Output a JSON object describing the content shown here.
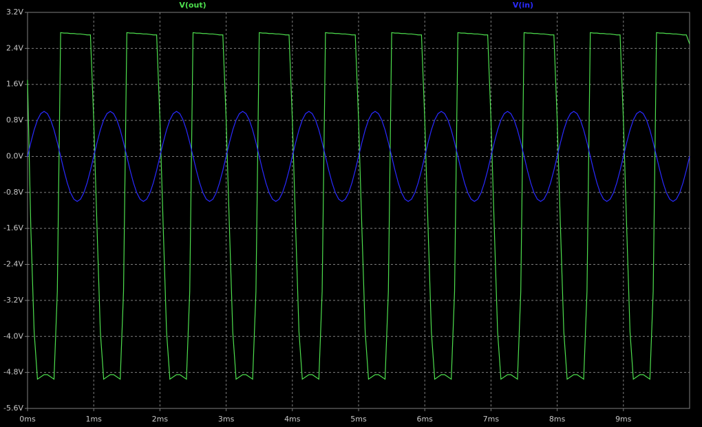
{
  "chart_data": {
    "type": "line",
    "x": [
      0,
      0.05,
      0.1,
      0.15,
      0.2,
      0.25,
      0.3,
      0.35,
      0.4,
      0.45,
      0.5,
      0.55,
      0.6,
      0.65,
      0.7,
      0.75,
      0.8,
      0.85,
      0.9,
      0.95,
      1,
      1.05,
      1.1,
      1.15,
      1.2,
      1.25,
      1.3,
      1.35,
      1.4,
      1.45,
      1.5,
      1.55,
      1.6,
      1.65,
      1.7,
      1.75,
      1.8,
      1.85,
      1.9,
      1.95,
      2,
      2.05,
      2.1,
      2.15,
      2.2,
      2.25,
      2.3,
      2.35,
      2.4,
      2.45,
      2.5,
      2.55,
      2.6,
      2.65,
      2.7,
      2.75,
      2.8,
      2.85,
      2.9,
      2.95,
      3,
      3.05,
      3.1,
      3.15,
      3.2,
      3.25,
      3.3,
      3.35,
      3.4,
      3.45,
      3.5,
      3.55,
      3.6,
      3.65,
      3.7,
      3.75,
      3.8,
      3.85,
      3.9,
      3.95,
      4,
      4.05,
      4.1,
      4.15,
      4.2,
      4.25,
      4.3,
      4.35,
      4.4,
      4.45,
      4.5,
      4.55,
      4.6,
      4.65,
      4.7,
      4.75,
      4.8,
      4.85,
      4.9,
      4.95,
      5,
      5.05,
      5.1,
      5.15,
      5.2,
      5.25,
      5.3,
      5.35,
      5.4,
      5.45,
      5.5,
      5.55,
      5.6,
      5.65,
      5.7,
      5.75,
      5.8,
      5.85,
      5.9,
      5.95,
      6,
      6.05,
      6.1,
      6.15,
      6.2,
      6.25,
      6.3,
      6.35,
      6.4,
      6.45,
      6.5,
      6.55,
      6.6,
      6.65,
      6.7,
      6.75,
      6.8,
      6.85,
      6.9,
      6.95,
      7,
      7.05,
      7.1,
      7.15,
      7.2,
      7.25,
      7.3,
      7.35,
      7.4,
      7.45,
      7.5,
      7.55,
      7.6,
      7.65,
      7.7,
      7.75,
      7.8,
      7.85,
      7.9,
      7.95,
      8,
      8.05,
      8.1,
      8.15,
      8.2,
      8.25,
      8.3,
      8.35,
      8.4,
      8.45,
      8.5,
      8.55,
      8.6,
      8.65,
      8.7,
      8.75,
      8.8,
      8.85,
      8.9,
      8.95,
      9,
      9.05,
      9.1,
      9.15,
      9.2,
      9.25,
      9.3,
      9.35,
      9.4,
      9.45,
      9.5,
      9.55,
      9.6,
      9.65,
      9.7,
      9.75,
      9.8,
      9.85,
      9.9,
      9.95,
      10
    ],
    "series": [
      {
        "name": "V(out)",
        "color": "#4ee04e",
        "values": [
          1.7,
          -1.6,
          -3.9,
          -4.95,
          -4.9,
          -4.85,
          -4.85,
          -4.9,
          -4.95,
          -3,
          2.75,
          2.74,
          2.74,
          2.73,
          2.73,
          2.72,
          2.72,
          2.71,
          2.7,
          2.7,
          0.8,
          -1.6,
          -3.9,
          -4.95,
          -4.9,
          -4.85,
          -4.85,
          -4.9,
          -4.95,
          -3,
          2.75,
          2.74,
          2.74,
          2.73,
          2.73,
          2.72,
          2.72,
          2.71,
          2.7,
          2.7,
          0.8,
          -1.6,
          -3.9,
          -4.95,
          -4.9,
          -4.85,
          -4.85,
          -4.9,
          -4.95,
          -3,
          2.75,
          2.74,
          2.74,
          2.73,
          2.73,
          2.72,
          2.72,
          2.71,
          2.7,
          2.7,
          0.8,
          -1.6,
          -3.9,
          -4.95,
          -4.9,
          -4.85,
          -4.85,
          -4.9,
          -4.95,
          -3,
          2.75,
          2.74,
          2.74,
          2.73,
          2.73,
          2.72,
          2.72,
          2.71,
          2.7,
          2.7,
          0.8,
          -1.6,
          -3.9,
          -4.95,
          -4.9,
          -4.85,
          -4.85,
          -4.9,
          -4.95,
          -3,
          2.75,
          2.74,
          2.74,
          2.73,
          2.73,
          2.72,
          2.72,
          2.71,
          2.7,
          2.7,
          0.8,
          -1.6,
          -3.9,
          -4.95,
          -4.9,
          -4.85,
          -4.85,
          -4.9,
          -4.95,
          -3,
          2.75,
          2.74,
          2.74,
          2.73,
          2.73,
          2.72,
          2.72,
          2.71,
          2.7,
          2.7,
          0.8,
          -1.6,
          -3.9,
          -4.95,
          -4.9,
          -4.85,
          -4.85,
          -4.9,
          -4.95,
          -3,
          2.75,
          2.74,
          2.74,
          2.73,
          2.73,
          2.72,
          2.72,
          2.71,
          2.7,
          2.7,
          0.8,
          -1.6,
          -3.9,
          -4.95,
          -4.9,
          -4.85,
          -4.85,
          -4.9,
          -4.95,
          -3,
          2.75,
          2.74,
          2.74,
          2.73,
          2.73,
          2.72,
          2.72,
          2.71,
          2.7,
          2.7,
          0.8,
          -1.6,
          -3.9,
          -4.95,
          -4.9,
          -4.85,
          -4.85,
          -4.9,
          -4.95,
          -3,
          2.75,
          2.74,
          2.74,
          2.73,
          2.73,
          2.72,
          2.72,
          2.71,
          2.7,
          2.7,
          0.8,
          -1.6,
          -3.9,
          -4.95,
          -4.9,
          -4.85,
          -4.85,
          -4.9,
          -4.95,
          -3,
          2.75,
          2.74,
          2.74,
          2.73,
          2.73,
          2.72,
          2.72,
          2.71,
          2.7,
          2.7,
          2.5
        ]
      },
      {
        "name": "V(in)",
        "color": "#2a2aff",
        "values": [
          0,
          0.309,
          0.588,
          0.809,
          0.951,
          1,
          0.951,
          0.809,
          0.588,
          0.309,
          0,
          -0.309,
          -0.588,
          -0.809,
          -0.951,
          -1,
          -0.951,
          -0.809,
          -0.588,
          -0.309,
          0,
          0.309,
          0.588,
          0.809,
          0.951,
          1,
          0.951,
          0.809,
          0.588,
          0.309,
          0,
          -0.309,
          -0.588,
          -0.809,
          -0.951,
          -1,
          -0.951,
          -0.809,
          -0.588,
          -0.309,
          0,
          0.309,
          0.588,
          0.809,
          0.951,
          1,
          0.951,
          0.809,
          0.588,
          0.309,
          0,
          -0.309,
          -0.588,
          -0.809,
          -0.951,
          -1,
          -0.951,
          -0.809,
          -0.588,
          -0.309,
          0,
          0.309,
          0.588,
          0.809,
          0.951,
          1,
          0.951,
          0.809,
          0.588,
          0.309,
          0,
          -0.309,
          -0.588,
          -0.809,
          -0.951,
          -1,
          -0.951,
          -0.809,
          -0.588,
          -0.309,
          0,
          0.309,
          0.588,
          0.809,
          0.951,
          1,
          0.951,
          0.809,
          0.588,
          0.309,
          0,
          -0.309,
          -0.588,
          -0.809,
          -0.951,
          -1,
          -0.951,
          -0.809,
          -0.588,
          -0.309,
          0,
          0.309,
          0.588,
          0.809,
          0.951,
          1,
          0.951,
          0.809,
          0.588,
          0.309,
          0,
          -0.309,
          -0.588,
          -0.809,
          -0.951,
          -1,
          -0.951,
          -0.809,
          -0.588,
          -0.309,
          0,
          0.309,
          0.588,
          0.809,
          0.951,
          1,
          0.951,
          0.809,
          0.588,
          0.309,
          0,
          -0.309,
          -0.588,
          -0.809,
          -0.951,
          -1,
          -0.951,
          -0.809,
          -0.588,
          -0.309,
          0,
          0.309,
          0.588,
          0.809,
          0.951,
          1,
          0.951,
          0.809,
          0.588,
          0.309,
          0,
          -0.309,
          -0.588,
          -0.809,
          -0.951,
          -1,
          -0.951,
          -0.809,
          -0.588,
          -0.309,
          0,
          0.309,
          0.588,
          0.809,
          0.951,
          1,
          0.951,
          0.809,
          0.588,
          0.309,
          0,
          -0.309,
          -0.588,
          -0.809,
          -0.951,
          -1,
          -0.951,
          -0.809,
          -0.588,
          -0.309,
          0,
          0.309,
          0.588,
          0.809,
          0.951,
          1,
          0.951,
          0.809,
          0.588,
          0.309,
          0,
          -0.309,
          -0.588,
          -0.809,
          -0.951,
          -1,
          -0.951,
          -0.809,
          -0.588,
          -0.309,
          0
        ]
      }
    ],
    "xlim": [
      0,
      10
    ],
    "xticks": [
      {
        "value": 0,
        "label": "0ms"
      },
      {
        "value": 1,
        "label": "1ms"
      },
      {
        "value": 2,
        "label": "2ms"
      },
      {
        "value": 3,
        "label": "3ms"
      },
      {
        "value": 4,
        "label": "4ms"
      },
      {
        "value": 5,
        "label": "5ms"
      },
      {
        "value": 6,
        "label": "6ms"
      },
      {
        "value": 7,
        "label": "7ms"
      },
      {
        "value": 8,
        "label": "8ms"
      },
      {
        "value": 9,
        "label": "9ms"
      }
    ],
    "ylim": [
      -5.6,
      3.2
    ],
    "yticks": [
      {
        "value": 3.2,
        "label": "3.2V"
      },
      {
        "value": 2.4,
        "label": "2.4V"
      },
      {
        "value": 1.6,
        "label": "1.6V"
      },
      {
        "value": 0.8,
        "label": "0.8V"
      },
      {
        "value": 0,
        "label": "0.0V"
      },
      {
        "value": -0.8,
        "label": "-0.8V"
      },
      {
        "value": -1.6,
        "label": "-1.6V"
      },
      {
        "value": -2.4,
        "label": "-2.4V"
      },
      {
        "value": -3.2,
        "label": "-3.2V"
      },
      {
        "value": -4,
        "label": "-4.0V"
      },
      {
        "value": -4.8,
        "label": "-4.8V"
      },
      {
        "value": -5.6,
        "label": "-5.6V"
      }
    ],
    "grid": true
  }
}
